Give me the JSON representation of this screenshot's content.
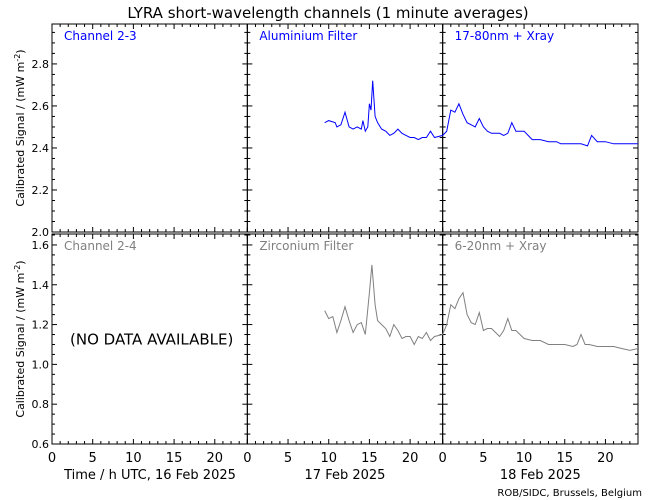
{
  "chart_data": {
    "type": "line",
    "title": "LYRA short-wavelength channels (1 minute averages)",
    "ylabel": "Calibrated Signal / (mW m",
    "ylabel_sup": "-2",
    "ylabel_close": ")",
    "credit": "ROB/SIDC, Brussels, Belgium",
    "days": [
      {
        "label": "Time / h UTC, 16 Feb 2025"
      },
      {
        "label": "17 Feb 2025"
      },
      {
        "label": "18 Feb 2025"
      }
    ],
    "xticks": [
      0,
      5,
      10,
      15,
      20
    ],
    "xlim_hours": [
      0,
      24
    ],
    "colors": {
      "top": "#0000ff",
      "bottom": "#808080"
    },
    "rows": [
      {
        "ylim": [
          2.0,
          2.99
        ],
        "yticks": [
          2.0,
          2.2,
          2.4,
          2.6,
          2.8
        ],
        "color": "#0000ff",
        "channel_labels": [
          "Channel 2-3",
          "Aluminium Filter",
          "17-80nm + Xray"
        ],
        "series": [
          {
            "day": 1,
            "points": [
              [
                9.5,
                2.52
              ],
              [
                10,
                2.53
              ],
              [
                10.8,
                2.52
              ],
              [
                11,
                2.5
              ],
              [
                11.5,
                2.51
              ],
              [
                12,
                2.57
              ],
              [
                12.5,
                2.5
              ],
              [
                13,
                2.49
              ],
              [
                13.5,
                2.5
              ],
              [
                14,
                2.49
              ],
              [
                14.2,
                2.53
              ],
              [
                14.5,
                2.48
              ],
              [
                14.8,
                2.5
              ],
              [
                15,
                2.61
              ],
              [
                15.2,
                2.58
              ],
              [
                15.4,
                2.72
              ],
              [
                15.7,
                2.55
              ],
              [
                16,
                2.52
              ],
              [
                16.5,
                2.49
              ],
              [
                17,
                2.48
              ],
              [
                17.5,
                2.46
              ],
              [
                18,
                2.47
              ],
              [
                18.5,
                2.49
              ],
              [
                19,
                2.47
              ],
              [
                19.5,
                2.46
              ],
              [
                20,
                2.45
              ],
              [
                20.5,
                2.45
              ],
              [
                21,
                2.44
              ],
              [
                21.5,
                2.45
              ],
              [
                22,
                2.45
              ],
              [
                22.5,
                2.48
              ],
              [
                23,
                2.45
              ],
              [
                24,
                2.46
              ]
            ]
          },
          {
            "day": 2,
            "points": [
              [
                0,
                2.46
              ],
              [
                0.5,
                2.48
              ],
              [
                1,
                2.58
              ],
              [
                1.5,
                2.57
              ],
              [
                2,
                2.61
              ],
              [
                2.5,
                2.56
              ],
              [
                3,
                2.52
              ],
              [
                3.5,
                2.51
              ],
              [
                4,
                2.5
              ],
              [
                4.5,
                2.54
              ],
              [
                5,
                2.5
              ],
              [
                5.5,
                2.48
              ],
              [
                6,
                2.47
              ],
              [
                7,
                2.47
              ],
              [
                7.5,
                2.46
              ],
              [
                8,
                2.47
              ],
              [
                8.5,
                2.52
              ],
              [
                9,
                2.48
              ],
              [
                10,
                2.48
              ],
              [
                10.5,
                2.46
              ],
              [
                11,
                2.44
              ],
              [
                12,
                2.44
              ],
              [
                13,
                2.43
              ],
              [
                14,
                2.43
              ],
              [
                14.5,
                2.42
              ],
              [
                15,
                2.42
              ],
              [
                16,
                2.42
              ],
              [
                17,
                2.42
              ],
              [
                17.8,
                2.41
              ],
              [
                18.3,
                2.46
              ],
              [
                19,
                2.43
              ],
              [
                20,
                2.43
              ],
              [
                21,
                2.42
              ],
              [
                22,
                2.42
              ],
              [
                23,
                2.42
              ],
              [
                24,
                2.42
              ]
            ]
          }
        ]
      },
      {
        "ylim": [
          0.6,
          1.655
        ],
        "yticks": [
          0.6,
          0.8,
          1.0,
          1.2,
          1.4,
          1.6
        ],
        "color": "#808080",
        "channel_labels": [
          "Channel 2-4",
          "Zirconium Filter",
          "6-20nm + Xray"
        ],
        "no_data": "(NO DATA AVAILABLE)",
        "series": [
          {
            "day": 1,
            "points": [
              [
                9.5,
                1.27
              ],
              [
                10,
                1.23
              ],
              [
                10.5,
                1.24
              ],
              [
                11,
                1.16
              ],
              [
                11.5,
                1.22
              ],
              [
                12,
                1.29
              ],
              [
                12.5,
                1.22
              ],
              [
                13,
                1.16
              ],
              [
                13.5,
                1.2
              ],
              [
                14,
                1.21
              ],
              [
                14.5,
                1.15
              ],
              [
                15,
                1.36
              ],
              [
                15.3,
                1.5
              ],
              [
                15.7,
                1.3
              ],
              [
                16,
                1.22
              ],
              [
                16.5,
                1.2
              ],
              [
                17,
                1.18
              ],
              [
                17.5,
                1.14
              ],
              [
                18,
                1.2
              ],
              [
                18.5,
                1.17
              ],
              [
                19,
                1.13
              ],
              [
                19.5,
                1.14
              ],
              [
                20,
                1.14
              ],
              [
                20.5,
                1.1
              ],
              [
                21,
                1.14
              ],
              [
                21.5,
                1.13
              ],
              [
                22,
                1.16
              ],
              [
                22.5,
                1.12
              ],
              [
                23,
                1.14
              ],
              [
                24,
                1.15
              ]
            ]
          },
          {
            "day": 2,
            "points": [
              [
                0,
                1.15
              ],
              [
                0.5,
                1.2
              ],
              [
                1,
                1.3
              ],
              [
                1.5,
                1.28
              ],
              [
                2,
                1.33
              ],
              [
                2.5,
                1.36
              ],
              [
                3,
                1.25
              ],
              [
                3.5,
                1.21
              ],
              [
                4,
                1.2
              ],
              [
                4.5,
                1.26
              ],
              [
                5,
                1.17
              ],
              [
                5.5,
                1.18
              ],
              [
                6,
                1.18
              ],
              [
                6.5,
                1.16
              ],
              [
                7,
                1.14
              ],
              [
                7.5,
                1.17
              ],
              [
                8,
                1.23
              ],
              [
                8.5,
                1.17
              ],
              [
                9,
                1.17
              ],
              [
                10,
                1.13
              ],
              [
                11,
                1.12
              ],
              [
                12,
                1.12
              ],
              [
                13,
                1.1
              ],
              [
                14,
                1.1
              ],
              [
                15,
                1.1
              ],
              [
                16,
                1.09
              ],
              [
                16.5,
                1.1
              ],
              [
                17,
                1.15
              ],
              [
                17.5,
                1.1
              ],
              [
                18,
                1.1
              ],
              [
                19,
                1.09
              ],
              [
                20,
                1.09
              ],
              [
                21,
                1.09
              ],
              [
                22,
                1.08
              ],
              [
                23,
                1.07
              ],
              [
                24,
                1.08
              ]
            ]
          }
        ]
      }
    ]
  }
}
